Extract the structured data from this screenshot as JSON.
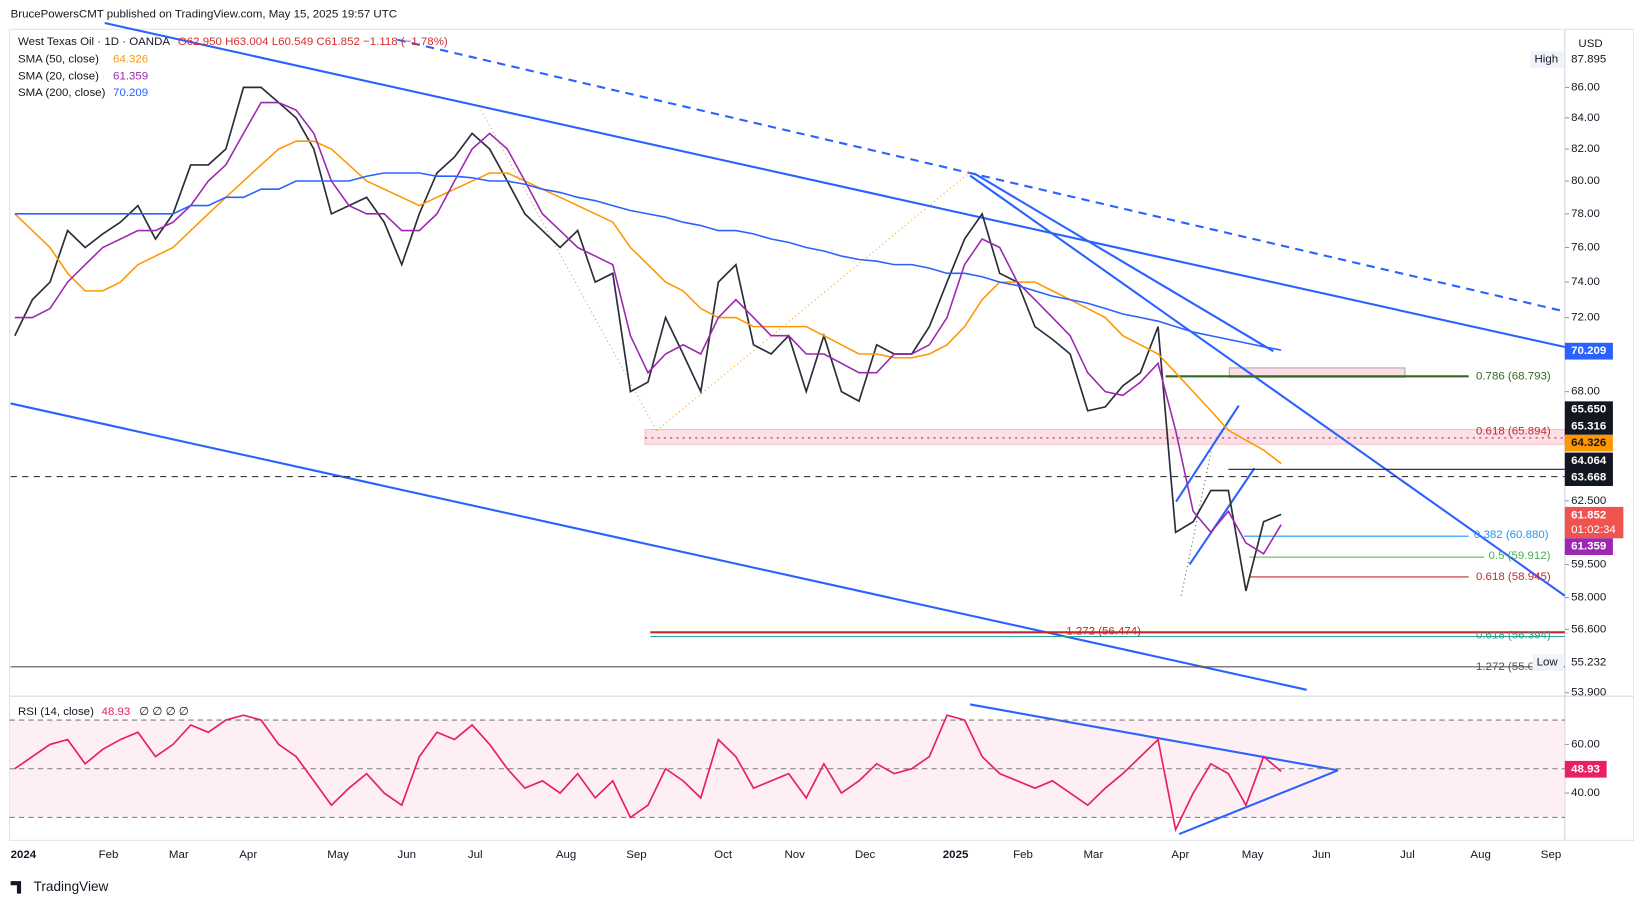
{
  "header": {
    "byline": "BrucePowersCMT published on TradingView.com, May 15, 2025 19:57 UTC",
    "brand": "TradingView",
    "currency": "USD"
  },
  "legend": {
    "symbol": "West Texas Oil · 1D · OANDA",
    "ohlc": "O62.950 H63.004 L60.549 C61.852 −1.118 (−1.78%)",
    "sma50": "SMA (50, close)",
    "sma50_value": "64.326",
    "sma20": "SMA (20, close)",
    "sma20_value": "61.359",
    "sma200": "SMA (200, close)",
    "sma200_value": "70.209",
    "rsi": "RSI (14, close)",
    "rsi_value": "48.93",
    "rsi_extra": "∅ ∅ ∅ ∅"
  },
  "price_labels": {
    "high": "High",
    "high_value": "87.895",
    "low": "Low",
    "low_value": "55.232",
    "sma200": "70.209",
    "p1": "65.650",
    "p2": "65.316",
    "sma50": "64.326",
    "p3": "64.064",
    "p4": "63.668",
    "last": "61.852",
    "countdown": "01:02:34",
    "sma20": "61.359",
    "rsi": "48.93"
  },
  "annotations": {
    "f786": "0.786 (68.793)",
    "f618a": "0.618 (65.894)",
    "f382": "0.382 (60.880)",
    "f5": "0.5 (59.912)",
    "f618b": "0.618 (58.945)",
    "e1272a": "1.272 (56.474)",
    "f618c": "0.618 (56.394)",
    "e1272b": "1.272 (55.0"
  },
  "chart_data": [
    {
      "type": "line",
      "log_scale": true,
      "grid": false,
      "categories": [
        "2024",
        null,
        null,
        null,
        null,
        "Feb",
        null,
        null,
        null,
        "Mar",
        null,
        null,
        null,
        "Apr",
        null,
        null,
        null,
        null,
        "May",
        null,
        null,
        null,
        "Jun",
        null,
        null,
        null,
        "Jul",
        null,
        null,
        null,
        null,
        "Aug",
        null,
        null,
        null,
        "Sep",
        null,
        null,
        null,
        null,
        "Oct",
        null,
        null,
        null,
        "Nov",
        null,
        null,
        null,
        "Dec",
        null,
        null,
        null,
        null,
        "2025",
        null,
        null,
        null,
        "Feb",
        null,
        null,
        null,
        "Mar",
        null,
        null,
        null,
        null,
        "Apr",
        null,
        null,
        null,
        "May",
        null,
        null,
        null,
        "Jun",
        null,
        null,
        null,
        null,
        "Jul",
        null,
        null,
        null,
        "Aug",
        null,
        null,
        null,
        "Sep"
      ],
      "ylim": [
        53.8,
        89.8
      ],
      "yticks": [
        {
          "value": 86,
          "label": "86.00"
        },
        {
          "value": 84,
          "label": "84.00"
        },
        {
          "value": 82,
          "label": "82.00"
        },
        {
          "value": 80,
          "label": "80.00"
        },
        {
          "value": 78,
          "label": "78.00"
        },
        {
          "value": 76,
          "label": "76.00"
        },
        {
          "value": 74,
          "label": "74.00"
        },
        {
          "value": 72,
          "label": "72.00"
        },
        {
          "value": 68,
          "label": "68.00"
        },
        {
          "value": 62.5,
          "label": "62.500"
        },
        {
          "value": 59.5,
          "label": "59.500"
        },
        {
          "value": 58,
          "label": "58.000"
        },
        {
          "value": 56.6,
          "label": "56.600"
        },
        {
          "value": 53.9,
          "label": "53.900"
        }
      ],
      "series": [
        {
          "name": "West Texas Oil",
          "color": "#2a2e39",
          "values": [
            71,
            73,
            74,
            77,
            76,
            76.8,
            77.5,
            78.5,
            76.5,
            78,
            81,
            81,
            82,
            86,
            86,
            85,
            84,
            82,
            78,
            78.5,
            79,
            77.5,
            75,
            78,
            80.5,
            81.5,
            83,
            82,
            80,
            78,
            77,
            76,
            77,
            74,
            74.5,
            68,
            68.5,
            72,
            70,
            68,
            74,
            75,
            70.5,
            70,
            71,
            68,
            71,
            68,
            67.5,
            70.5,
            70,
            70,
            71.5,
            74,
            76.5,
            78,
            74.5,
            74,
            71.5,
            70.8,
            70,
            67,
            67.2,
            68.3,
            69,
            71.5,
            61,
            61.5,
            63,
            63,
            58.3,
            61.5,
            61.852,
            null,
            null,
            null,
            null,
            null,
            null,
            null,
            null,
            null,
            null,
            null,
            null,
            null,
            null,
            null
          ]
        },
        {
          "name": "SMA (50, close)",
          "color": "#ff9800",
          "values": [
            78,
            77,
            76,
            74.5,
            73.5,
            73.5,
            74,
            75,
            75.5,
            76,
            77,
            78,
            79,
            80,
            81,
            82,
            82.5,
            82.5,
            82,
            81,
            80,
            79.5,
            79,
            78.5,
            79,
            79.5,
            80,
            80.5,
            80.5,
            80,
            79.5,
            79,
            78.5,
            78,
            77.5,
            76,
            75,
            74,
            73.5,
            72.5,
            72,
            72,
            71.5,
            71.5,
            71.5,
            71.5,
            71,
            70.5,
            70,
            70,
            69.8,
            69.8,
            70,
            70.5,
            71.5,
            73,
            74,
            74,
            74,
            73.5,
            73,
            72.5,
            72,
            71,
            70.5,
            70,
            69,
            68,
            67,
            66,
            65.5,
            65,
            64.326,
            null,
            null,
            null,
            null,
            null,
            null,
            null,
            null,
            null,
            null,
            null,
            null,
            null,
            null,
            null
          ]
        },
        {
          "name": "SMA (20, close)",
          "color": "#9c27b0",
          "values": [
            72,
            72,
            72.5,
            74,
            75,
            76,
            76.5,
            77,
            77,
            77.5,
            78.5,
            80,
            81,
            83,
            85,
            85,
            84.5,
            83,
            80,
            78.5,
            78,
            78,
            77,
            77,
            78,
            80,
            82,
            83,
            82,
            80,
            78,
            77,
            76,
            75.5,
            75,
            71,
            69,
            70,
            70.5,
            70,
            72,
            73,
            72,
            71,
            71,
            70,
            70,
            69.5,
            69,
            69,
            70,
            70,
            70.5,
            72,
            75,
            76.5,
            76,
            74,
            73,
            72,
            71,
            69,
            68,
            67.8,
            68.5,
            69.5,
            66,
            62,
            61,
            62,
            60.5,
            60,
            61.359,
            null,
            null,
            null,
            null,
            null,
            null,
            null,
            null,
            null,
            null,
            null,
            null,
            null,
            null,
            null
          ]
        },
        {
          "name": "SMA (200, close)",
          "color": "#2962ff",
          "values": [
            78,
            78,
            78,
            78,
            78,
            78,
            78,
            78,
            78,
            78,
            78.5,
            78.5,
            79,
            79,
            79.5,
            79.5,
            80,
            80,
            80,
            80,
            80.3,
            80.5,
            80.5,
            80.5,
            80.3,
            80.3,
            80.2,
            80,
            80,
            79.8,
            79.5,
            79.3,
            79,
            78.8,
            78.5,
            78.2,
            78,
            77.8,
            77.5,
            77.3,
            77,
            77,
            76.8,
            76.5,
            76.3,
            76,
            75.8,
            75.5,
            75.3,
            75.2,
            75,
            75,
            74.8,
            74.5,
            74.5,
            74.3,
            74,
            73.8,
            73.5,
            73.2,
            73,
            72.8,
            72.5,
            72.2,
            72,
            71.8,
            71.5,
            71.2,
            71,
            70.8,
            70.6,
            70.4,
            70.209,
            null,
            null,
            null,
            null,
            null,
            null,
            null,
            null,
            null,
            null,
            null,
            null,
            null,
            null,
            null
          ]
        }
      ]
    },
    {
      "type": "line",
      "grid": false,
      "ylim": [
        21,
        79
      ],
      "yticks": [
        {
          "value": 60,
          "label": "60.00"
        },
        {
          "value": 40,
          "label": "40.00"
        }
      ],
      "levels": [
        30,
        50,
        70
      ],
      "series": [
        {
          "name": "RSI (14, close)",
          "color": "#e91e63",
          "values": [
            50,
            55,
            60,
            62,
            52,
            58,
            62,
            65,
            55,
            60,
            68,
            65,
            70,
            72,
            70,
            60,
            55,
            45,
            35,
            42,
            48,
            40,
            35,
            55,
            65,
            62,
            68,
            60,
            50,
            42,
            45,
            40,
            48,
            38,
            45,
            30,
            35,
            50,
            45,
            38,
            62,
            55,
            42,
            45,
            48,
            38,
            52,
            40,
            45,
            52,
            48,
            50,
            55,
            72,
            70,
            55,
            48,
            45,
            42,
            45,
            40,
            35,
            42,
            48,
            55,
            62,
            25,
            40,
            52,
            48,
            35,
            55,
            48.93,
            null,
            null,
            null,
            null,
            null,
            null,
            null,
            null,
            null,
            null,
            null,
            null,
            null,
            null,
            null
          ]
        }
      ]
    }
  ]
}
